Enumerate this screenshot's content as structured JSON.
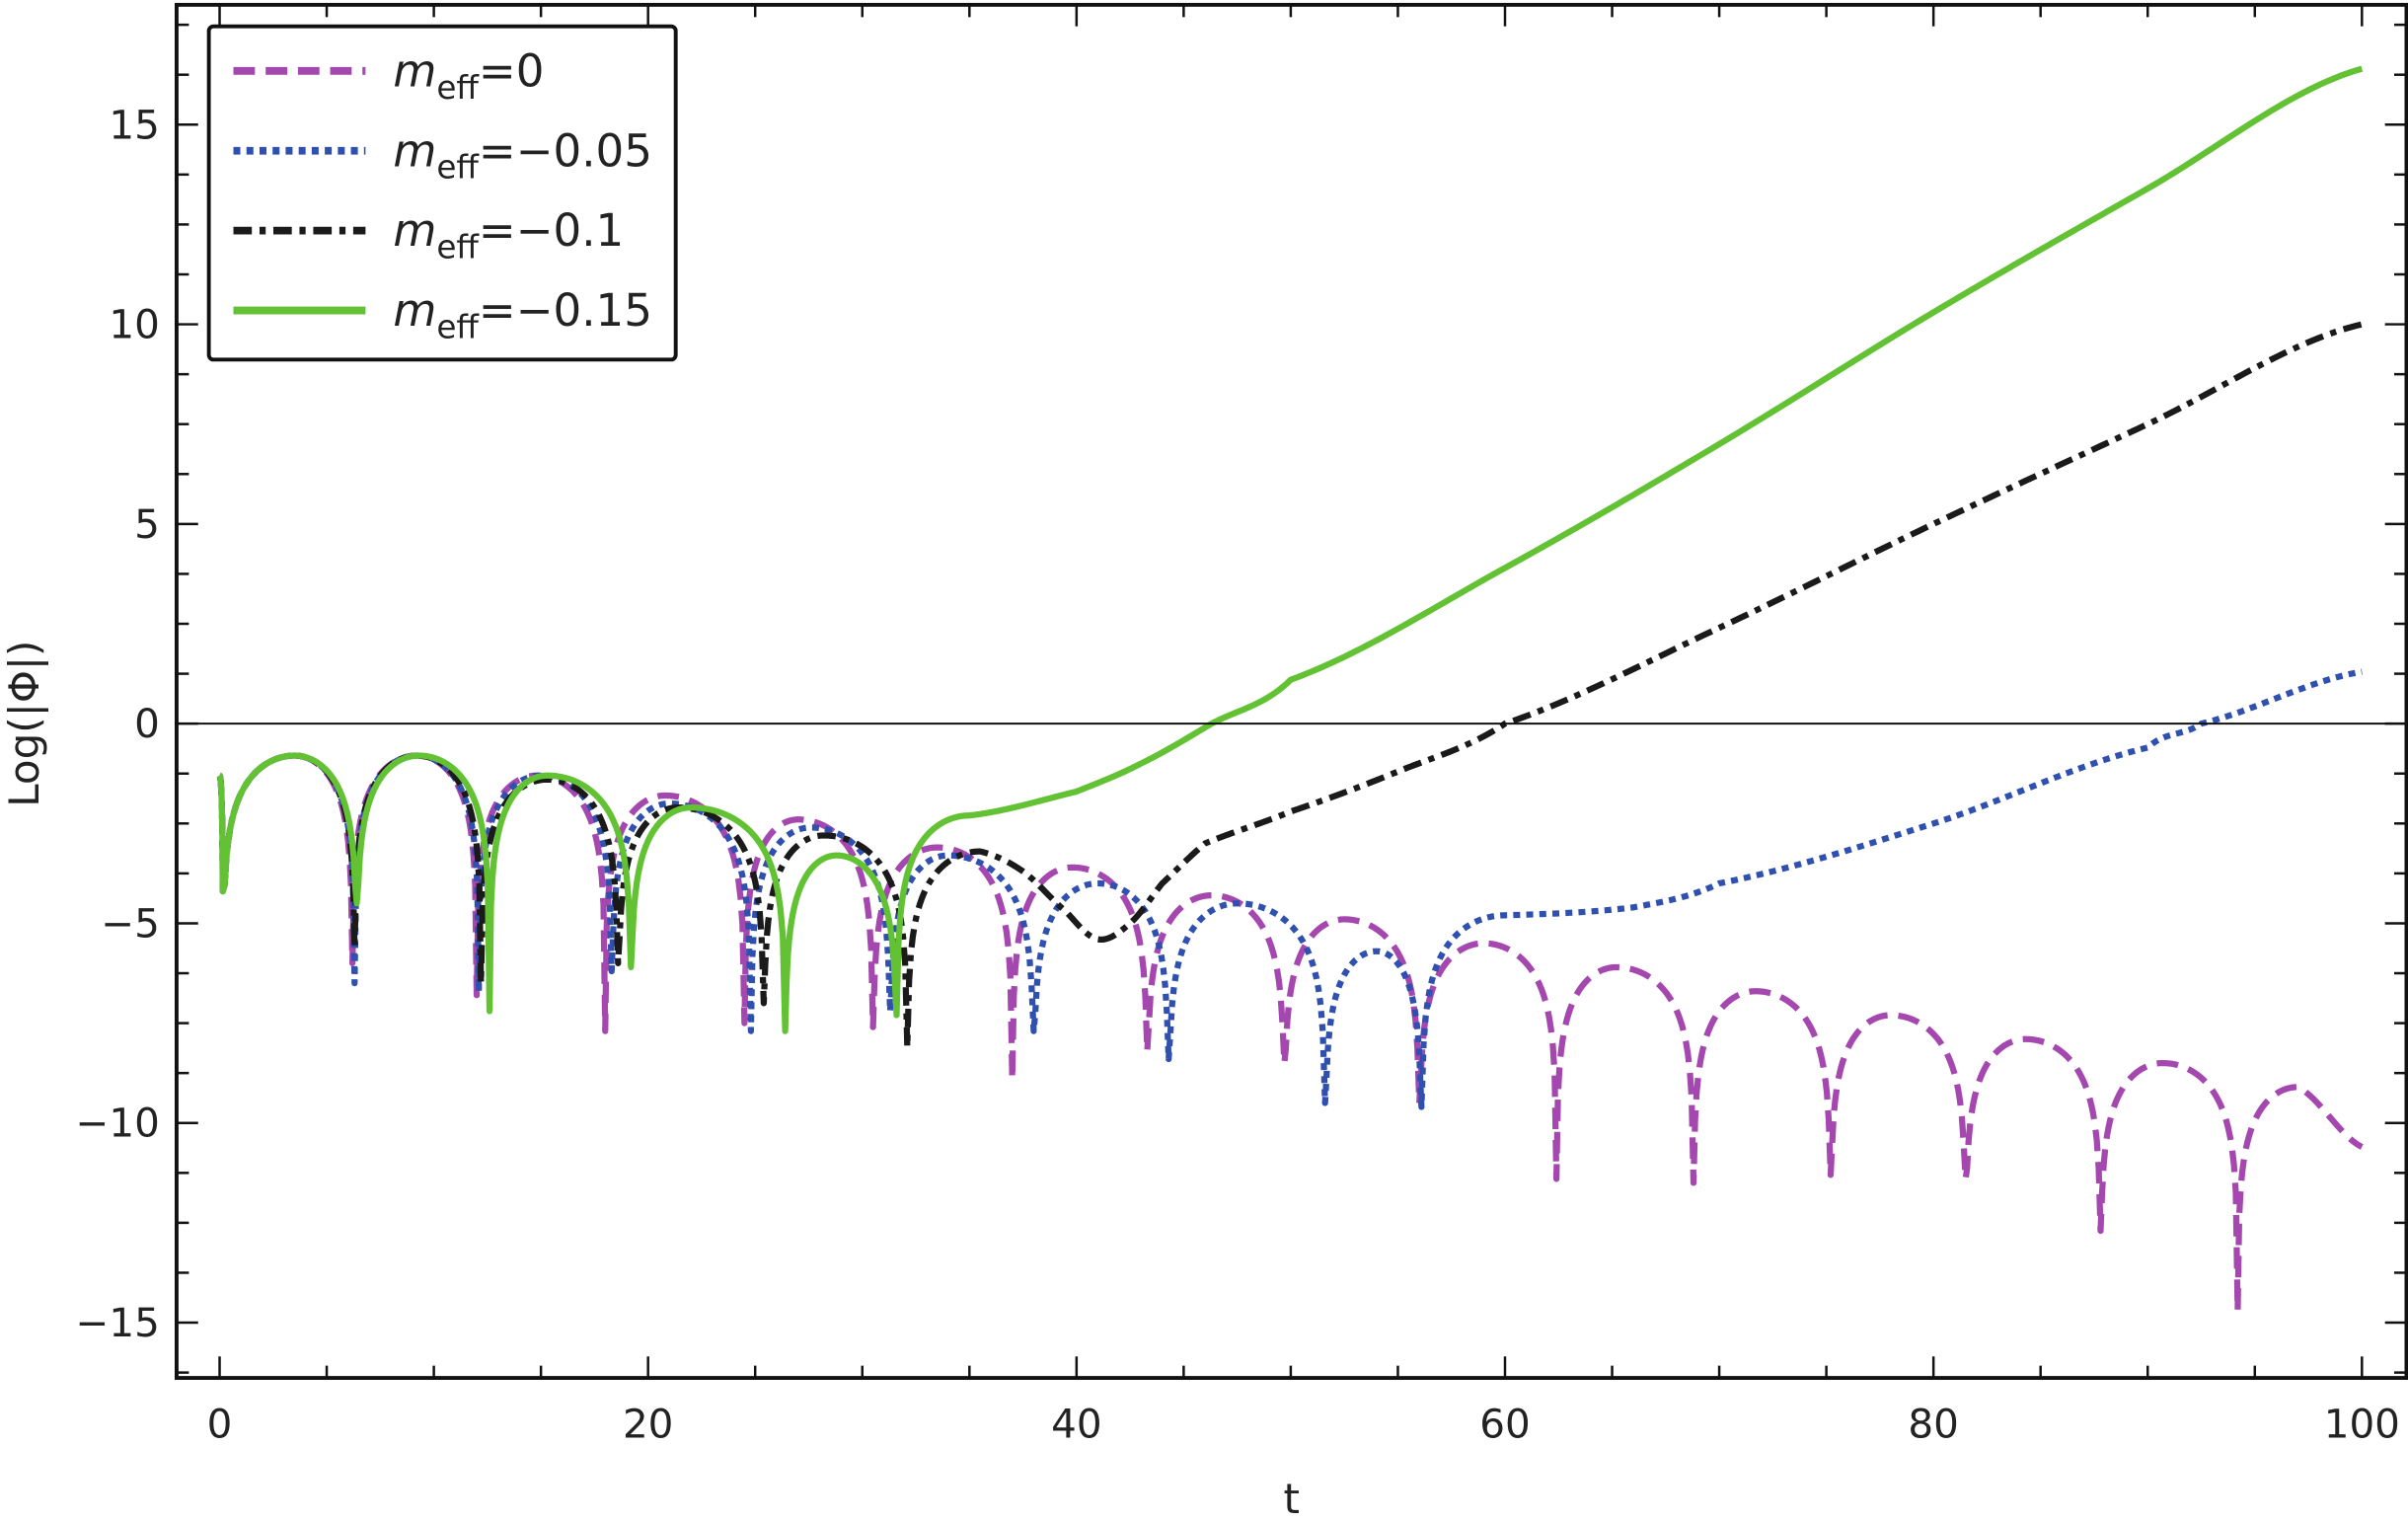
{
  "chart_data": {
    "type": "line",
    "title": "",
    "xlabel": "t",
    "ylabel": "Log(|Φ|)",
    "xlim": [
      -2,
      102
    ],
    "ylim": [
      -16.3,
      18
    ],
    "xticks": [
      0,
      20,
      40,
      60,
      80,
      100
    ],
    "xtick_labels": [
      "0",
      "20",
      "40",
      "60",
      "80",
      "100"
    ],
    "yticks": [
      -15,
      -10,
      -5,
      0,
      5,
      10,
      15
    ],
    "ytick_labels": [
      "−15",
      "−10",
      "−5",
      "0",
      "5",
      "10",
      "15"
    ],
    "grid": false,
    "reference_line_y": 0,
    "legend_position": "top-left",
    "point_kinds": {
      "s": "smooth point",
      "d": "dip (zero crossing)",
      "p": "local peak"
    },
    "series": [
      {
        "name": "m_eff=0",
        "legend": {
          "symbol": "m",
          "subscript": "eff",
          "value": "=0"
        },
        "color": "#A447AE",
        "style": "dashed",
        "points": [
          [
            0,
            -1.3,
            "s"
          ],
          [
            0.15,
            -4.2,
            "d"
          ],
          [
            3.5,
            -0.8,
            "p"
          ],
          [
            6.2,
            -6.0,
            "d"
          ],
          [
            9.2,
            -0.8,
            "p"
          ],
          [
            12.0,
            -6.8,
            "d"
          ],
          [
            14.8,
            -1.3,
            "p"
          ],
          [
            18.0,
            -7.7,
            "d"
          ],
          [
            20.8,
            -1.8,
            "p"
          ],
          [
            24.5,
            -7.5,
            "d"
          ],
          [
            27.0,
            -2.4,
            "p"
          ],
          [
            30.5,
            -7.6,
            "d"
          ],
          [
            33.5,
            -3.1,
            "p"
          ],
          [
            37.0,
            -8.9,
            "d"
          ],
          [
            39.8,
            -3.6,
            "p"
          ],
          [
            43.3,
            -8.2,
            "d"
          ],
          [
            46.3,
            -4.3,
            "p"
          ],
          [
            49.7,
            -8.5,
            "d"
          ],
          [
            52.5,
            -4.9,
            "p"
          ],
          [
            56.0,
            -9.5,
            "d"
          ],
          [
            59.0,
            -5.5,
            "p"
          ],
          [
            62.4,
            -11.4,
            "d"
          ],
          [
            65.2,
            -6.1,
            "p"
          ],
          [
            68.8,
            -11.5,
            "d"
          ],
          [
            71.7,
            -6.7,
            "p"
          ],
          [
            75.2,
            -11.3,
            "d"
          ],
          [
            78.0,
            -7.3,
            "p"
          ],
          [
            81.5,
            -11.4,
            "d"
          ],
          [
            84.3,
            -7.9,
            "p"
          ],
          [
            87.8,
            -12.7,
            "d"
          ],
          [
            90.7,
            -8.5,
            "p"
          ],
          [
            94.2,
            -14.7,
            "d"
          ],
          [
            97.0,
            -9.1,
            "p"
          ],
          [
            100,
            -10.6,
            "s"
          ]
        ]
      },
      {
        "name": "m_eff=-0.05",
        "legend": {
          "symbol": "m",
          "subscript": "eff",
          "value": "=−0.05"
        },
        "color": "#3050B0",
        "style": "dotted",
        "points": [
          [
            0,
            -1.3,
            "s"
          ],
          [
            0.15,
            -4.2,
            "d"
          ],
          [
            3.5,
            -0.8,
            "p"
          ],
          [
            6.3,
            -6.5,
            "d"
          ],
          [
            9.2,
            -0.8,
            "p"
          ],
          [
            12.1,
            -6.7,
            "d"
          ],
          [
            15.0,
            -1.3,
            "p"
          ],
          [
            18.3,
            -6.2,
            "d"
          ],
          [
            21.0,
            -2.0,
            "p"
          ],
          [
            24.8,
            -7.7,
            "d"
          ],
          [
            27.6,
            -2.6,
            "p"
          ],
          [
            31.3,
            -7.2,
            "d"
          ],
          [
            34.0,
            -3.3,
            "p"
          ],
          [
            38.0,
            -7.7,
            "d"
          ],
          [
            41.0,
            -4.0,
            "p"
          ],
          [
            44.3,
            -8.4,
            "d"
          ],
          [
            47.5,
            -4.5,
            "p"
          ],
          [
            51.6,
            -9.5,
            "d"
          ],
          [
            54.0,
            -5.7,
            "p"
          ],
          [
            56.1,
            -9.6,
            "d"
          ],
          [
            60.0,
            -4.8,
            "p"
          ],
          [
            66.0,
            -4.6,
            "s"
          ],
          [
            70.0,
            -4.0,
            "s"
          ],
          [
            80.0,
            -2.5,
            "s"
          ],
          [
            90.0,
            -0.6,
            "s"
          ],
          [
            92.5,
            0.0,
            "s"
          ],
          [
            100,
            1.3,
            "s"
          ]
        ]
      },
      {
        "name": "m_eff=-0.1",
        "legend": {
          "symbol": "m",
          "subscript": "eff",
          "value": "=−0.1"
        },
        "color": "#1A1A1A",
        "style": "dashdot",
        "points": [
          [
            0,
            -1.3,
            "s"
          ],
          [
            0.15,
            -4.2,
            "d"
          ],
          [
            3.5,
            -0.8,
            "p"
          ],
          [
            6.3,
            -5.6,
            "d"
          ],
          [
            9.2,
            -0.8,
            "p"
          ],
          [
            12.2,
            -6.5,
            "d"
          ],
          [
            15.3,
            -1.4,
            "p"
          ],
          [
            18.6,
            -6.0,
            "d"
          ],
          [
            21.4,
            -2.1,
            "p"
          ],
          [
            25.4,
            -7.0,
            "d"
          ],
          [
            28.2,
            -2.8,
            "p"
          ],
          [
            32.1,
            -8.1,
            "d"
          ],
          [
            35.5,
            -3.2,
            "p"
          ],
          [
            37.5,
            -3.7,
            "s"
          ],
          [
            39.5,
            -4.7,
            "s"
          ],
          [
            41.0,
            -5.4,
            "s"
          ],
          [
            42.5,
            -5.0,
            "s"
          ],
          [
            44.0,
            -4.0,
            "s"
          ],
          [
            46.0,
            -3.0,
            "s"
          ],
          [
            50.0,
            -2.2,
            "s"
          ],
          [
            55.0,
            -1.2,
            "s"
          ],
          [
            60.0,
            0.0,
            "s"
          ],
          [
            70.0,
            2.4,
            "s"
          ],
          [
            80.0,
            5.0,
            "s"
          ],
          [
            90.0,
            7.5,
            "s"
          ],
          [
            100,
            10.0,
            "s"
          ]
        ]
      },
      {
        "name": "m_eff=-0.15",
        "legend": {
          "symbol": "m",
          "subscript": "eff",
          "value": "=−0.15"
        },
        "color": "#62C233",
        "style": "solid",
        "points": [
          [
            0,
            -1.3,
            "s"
          ],
          [
            0.15,
            -4.2,
            "d"
          ],
          [
            3.5,
            -0.8,
            "p"
          ],
          [
            6.4,
            -4.5,
            "d"
          ],
          [
            9.3,
            -0.8,
            "p"
          ],
          [
            12.6,
            -7.2,
            "d"
          ],
          [
            15.3,
            -1.3,
            "p"
          ],
          [
            19.2,
            -6.1,
            "d"
          ],
          [
            22.0,
            -2.1,
            "p"
          ],
          [
            26.4,
            -7.7,
            "d"
          ],
          [
            28.8,
            -3.3,
            "p"
          ],
          [
            31.6,
            -7.3,
            "d"
          ],
          [
            35.0,
            -2.3,
            "p"
          ],
          [
            40.0,
            -1.7,
            "s"
          ],
          [
            43.0,
            -1.0,
            "s"
          ],
          [
            46.3,
            0.0,
            "s"
          ],
          [
            50.0,
            1.1,
            "s"
          ],
          [
            60.0,
            3.9,
            "s"
          ],
          [
            70.0,
            7.0,
            "s"
          ],
          [
            80.0,
            10.3,
            "s"
          ],
          [
            90.0,
            13.4,
            "s"
          ],
          [
            100,
            16.4,
            "s"
          ]
        ]
      }
    ]
  }
}
